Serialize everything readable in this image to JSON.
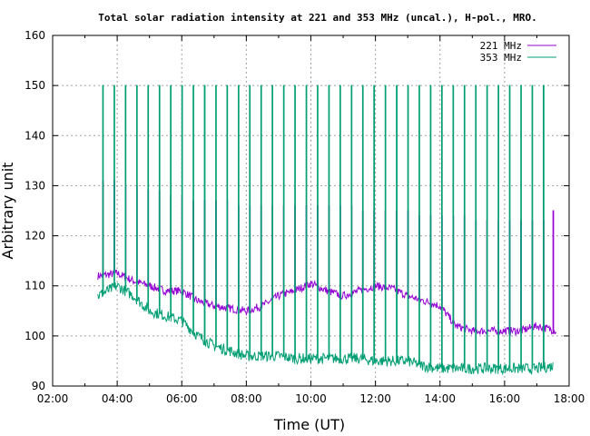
{
  "chart_data": {
    "type": "line",
    "title": "Total solar radiation intensity at 221 and 353 MHz (uncal.), H-pol., MRO.",
    "xlabel": "Time (UT)",
    "ylabel": "Arbitrary unit",
    "xlim": [
      2,
      18
    ],
    "ylim": [
      90,
      160
    ],
    "grid": true,
    "legend_position": "top-right",
    "xticks": [
      {
        "v": 2,
        "label": "02:00"
      },
      {
        "v": 4,
        "label": "04:00"
      },
      {
        "v": 6,
        "label": "06:00"
      },
      {
        "v": 8,
        "label": "08:00"
      },
      {
        "v": 10,
        "label": "10:00"
      },
      {
        "v": 12,
        "label": "12:00"
      },
      {
        "v": 14,
        "label": "14:00"
      },
      {
        "v": 16,
        "label": "16:00"
      },
      {
        "v": 18,
        "label": "18:00"
      }
    ],
    "yticks": [
      {
        "v": 90,
        "label": "90"
      },
      {
        "v": 100,
        "label": "100"
      },
      {
        "v": 110,
        "label": "110"
      },
      {
        "v": 120,
        "label": "120"
      },
      {
        "v": 130,
        "label": "130"
      },
      {
        "v": 140,
        "label": "140"
      },
      {
        "v": 150,
        "label": "150"
      },
      {
        "v": 160,
        "label": "160"
      }
    ],
    "series": [
      {
        "name": "221 MHz",
        "color": "#9400d3",
        "baseline": [
          [
            3.4,
            112
          ],
          [
            4,
            112.5
          ],
          [
            4.5,
            111
          ],
          [
            5,
            110
          ],
          [
            5.5,
            109
          ],
          [
            6,
            109
          ],
          [
            6.5,
            107
          ],
          [
            7,
            106
          ],
          [
            7.5,
            105.5
          ],
          [
            8,
            105
          ],
          [
            8.5,
            106
          ],
          [
            9,
            108
          ],
          [
            9.5,
            109
          ],
          [
            10,
            110.5
          ],
          [
            10.5,
            109
          ],
          [
            11,
            108
          ],
          [
            11.5,
            109
          ],
          [
            12,
            110
          ],
          [
            12.5,
            109.5
          ],
          [
            13,
            108
          ],
          [
            13.5,
            107
          ],
          [
            14,
            106
          ],
          [
            14.5,
            102
          ],
          [
            15,
            101
          ],
          [
            15.5,
            101
          ],
          [
            16,
            101
          ],
          [
            16.5,
            101
          ],
          [
            17,
            102
          ],
          [
            17.6,
            101
          ]
        ],
        "spike_peaks": [
          131,
          131,
          130,
          130,
          129,
          129,
          128,
          128,
          127,
          127,
          127,
          127,
          126,
          126,
          126,
          126,
          126,
          126,
          126,
          126,
          126,
          126,
          126,
          125,
          125,
          125,
          125,
          125,
          124,
          124,
          124,
          124,
          124,
          123,
          123,
          123,
          123,
          123,
          123,
          123,
          125
        ]
      },
      {
        "name": "353 MHz",
        "color": "#009e73",
        "baseline": [
          [
            3.4,
            108
          ],
          [
            4,
            110
          ],
          [
            4.5,
            108
          ],
          [
            5,
            105
          ],
          [
            5.5,
            104
          ],
          [
            6,
            103
          ],
          [
            6.5,
            100
          ],
          [
            7,
            98
          ],
          [
            7.5,
            97
          ],
          [
            8,
            96
          ],
          [
            8.5,
            96
          ],
          [
            9,
            96
          ],
          [
            9.5,
            95.5
          ],
          [
            10,
            95.5
          ],
          [
            10.5,
            95.5
          ],
          [
            11,
            95.5
          ],
          [
            11.5,
            95.5
          ],
          [
            12,
            95
          ],
          [
            12.5,
            95
          ],
          [
            13,
            95
          ],
          [
            13.5,
            94
          ],
          [
            14,
            93.5
          ],
          [
            14.5,
            93.5
          ],
          [
            15,
            93.5
          ],
          [
            15.5,
            93.5
          ],
          [
            16,
            93.5
          ],
          [
            16.5,
            93.5
          ],
          [
            17,
            93.5
          ],
          [
            17.5,
            94
          ]
        ],
        "spike_peaks": [
          150,
          150,
          150,
          150,
          150,
          150,
          150,
          150,
          150,
          150,
          150,
          150,
          150,
          150,
          150,
          150,
          150,
          150,
          150,
          150,
          150,
          150,
          150,
          150,
          150,
          150,
          150,
          150,
          150,
          150,
          150,
          150,
          150,
          150,
          150,
          150,
          150,
          150,
          150,
          150,
          149
        ]
      }
    ],
    "spike_times": [
      3.55,
      3.9,
      4.25,
      4.6,
      4.95,
      5.3,
      5.65,
      6.0,
      6.35,
      6.7,
      7.05,
      7.4,
      7.75,
      8.1,
      8.45,
      8.8,
      9.15,
      9.5,
      9.85,
      10.2,
      10.55,
      10.9,
      11.25,
      11.6,
      11.95,
      12.3,
      12.65,
      13.0,
      13.35,
      13.7,
      14.05,
      14.4,
      14.75,
      15.1,
      15.45,
      15.8,
      16.15,
      16.5,
      16.85,
      17.2,
      17.5
    ]
  }
}
